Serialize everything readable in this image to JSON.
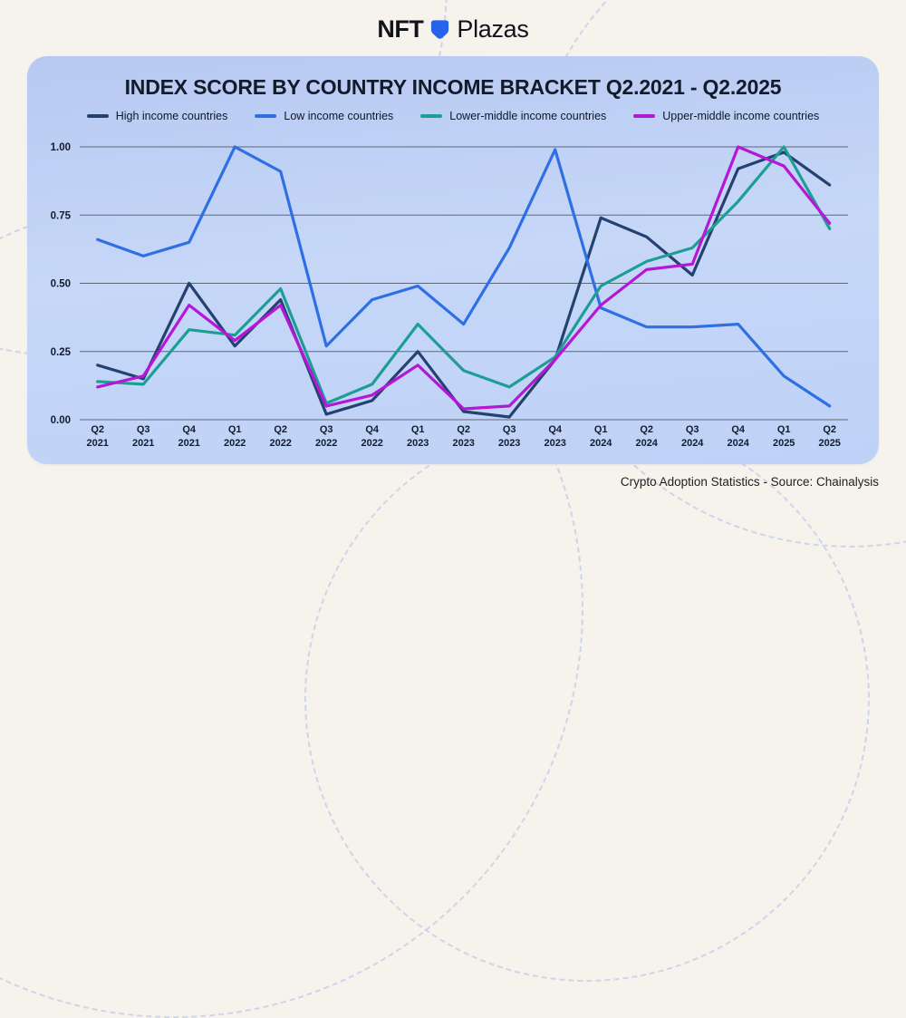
{
  "header": {
    "logo": {
      "nft": "NFT",
      "plazas": "Plazas",
      "glyph_color": "#2563eb"
    }
  },
  "chart_data": {
    "type": "line",
    "title": "INDEX SCORE BY COUNTRY INCOME BRACKET Q2.2021 - Q2.2025",
    "categories": [
      "Q2 2021",
      "Q3 2021",
      "Q4 2021",
      "Q1 2022",
      "Q2 2022",
      "Q3 2022",
      "Q4 2022",
      "Q1 2023",
      "Q2 2023",
      "Q3 2023",
      "Q4 2023",
      "Q1 2024",
      "Q2 2024",
      "Q3 2024",
      "Q4 2024",
      "Q1 2025",
      "Q2 2025"
    ],
    "series": [
      {
        "name": "High income countries",
        "color": "#254170",
        "values": [
          0.2,
          0.15,
          0.5,
          0.27,
          0.44,
          0.02,
          0.07,
          0.25,
          0.03,
          0.01,
          0.22,
          0.74,
          0.67,
          0.53,
          0.92,
          0.98,
          0.86
        ]
      },
      {
        "name": "Low income countries",
        "color": "#2e6fe3",
        "values": [
          0.66,
          0.6,
          0.65,
          1.0,
          0.91,
          0.27,
          0.44,
          0.49,
          0.35,
          0.63,
          0.99,
          0.41,
          0.34,
          0.34,
          0.35,
          0.16,
          0.05
        ]
      },
      {
        "name": "Lower-middle income countries",
        "color": "#1d9e95",
        "values": [
          0.14,
          0.13,
          0.33,
          0.31,
          0.48,
          0.06,
          0.13,
          0.35,
          0.18,
          0.12,
          0.23,
          0.49,
          0.58,
          0.63,
          0.8,
          1.0,
          0.7
        ]
      },
      {
        "name": "Upper-middle income countries",
        "color": "#b517d6",
        "values": [
          0.12,
          0.16,
          0.42,
          0.29,
          0.42,
          0.05,
          0.09,
          0.2,
          0.04,
          0.05,
          0.22,
          0.42,
          0.55,
          0.57,
          1.0,
          0.93,
          0.72
        ]
      }
    ],
    "xlabel": "",
    "ylabel": "",
    "ylim": [
      0,
      1
    ],
    "yticks": [
      0,
      0.25,
      0.5,
      0.75,
      1
    ],
    "ytick_labels": [
      "0.00",
      "0.25",
      "0.50",
      "0.75",
      "1.00"
    ],
    "grid": true,
    "legend_position": "top"
  },
  "footer": {
    "text": "Crypto Adoption Statistics - Source: Chainalysis"
  }
}
